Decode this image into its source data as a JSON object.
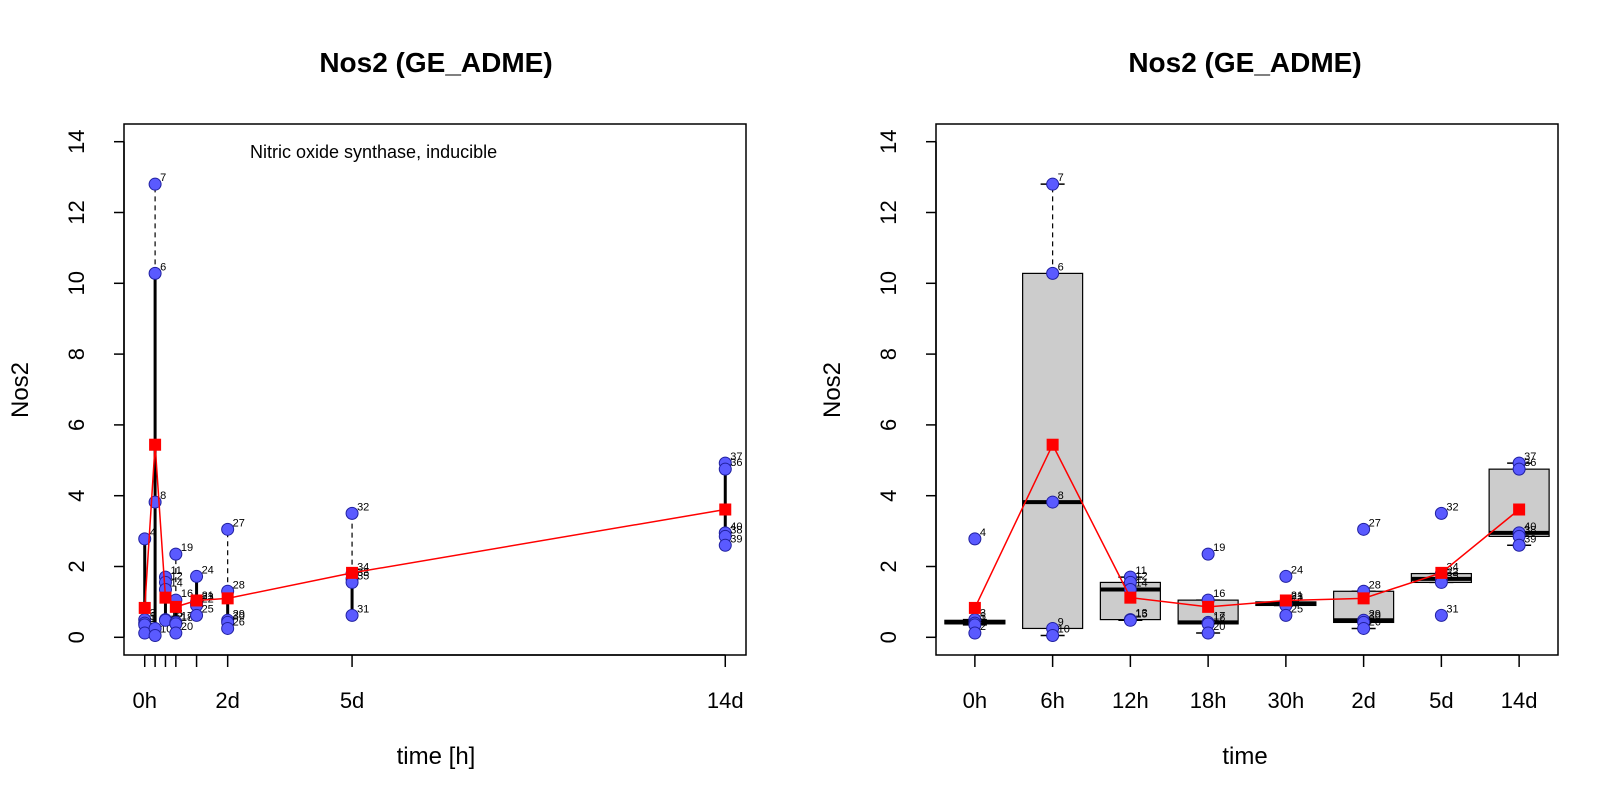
{
  "colors": {
    "point_fill": "#5a5aff",
    "point_stroke": "#2020a0",
    "mean_line": "#ff0000",
    "box_fill": "#cccccc",
    "axis": "#000000"
  },
  "chart_data": [
    {
      "type": "scatter",
      "title": "Nos2 (GE_ADME)",
      "annotation": "Nitric oxide synthase, inducible",
      "xlabel": "time [h]",
      "ylabel": "Nos2",
      "ylim": [
        -0.5,
        14.5
      ],
      "y_ticks": [
        0,
        2,
        4,
        6,
        8,
        10,
        12,
        14
      ],
      "xlim": [
        -12,
        348
      ],
      "x_ticks": [
        {
          "value": 0,
          "label": "0h"
        },
        {
          "value": 6,
          "label": ""
        },
        {
          "value": 12,
          "label": ""
        },
        {
          "value": 18,
          "label": ""
        },
        {
          "value": 30,
          "label": ""
        },
        {
          "value": 48,
          "label": "2d"
        },
        {
          "value": 120,
          "label": "5d"
        },
        {
          "value": 336,
          "label": "14d"
        }
      ],
      "points": [
        {
          "x": 0,
          "y": 2.78,
          "label": "4"
        },
        {
          "x": 0,
          "y": 0.5,
          "label": "3"
        },
        {
          "x": 0,
          "y": 0.4,
          "label": "5"
        },
        {
          "x": 0,
          "y": 0.35,
          "label": "1"
        },
        {
          "x": 0,
          "y": 0.12,
          "label": "2"
        },
        {
          "x": 6,
          "y": 12.8,
          "label": "7"
        },
        {
          "x": 6,
          "y": 10.28,
          "label": "6"
        },
        {
          "x": 6,
          "y": 3.82,
          "label": "8"
        },
        {
          "x": 6,
          "y": 0.25,
          "label": "9"
        },
        {
          "x": 6,
          "y": 0.05,
          "label": "10"
        },
        {
          "x": 12,
          "y": 1.7,
          "label": "11"
        },
        {
          "x": 12,
          "y": 1.55,
          "label": "12"
        },
        {
          "x": 12,
          "y": 1.35,
          "label": "14"
        },
        {
          "x": 12,
          "y": 0.5,
          "label": "13"
        },
        {
          "x": 12,
          "y": 0.48,
          "label": "15"
        },
        {
          "x": 18,
          "y": 2.35,
          "label": "19"
        },
        {
          "x": 18,
          "y": 1.05,
          "label": "16"
        },
        {
          "x": 18,
          "y": 0.42,
          "label": "17"
        },
        {
          "x": 18,
          "y": 0.38,
          "label": "18"
        },
        {
          "x": 18,
          "y": 0.12,
          "label": "20"
        },
        {
          "x": 30,
          "y": 1.72,
          "label": "24"
        },
        {
          "x": 30,
          "y": 1.0,
          "label": "21"
        },
        {
          "x": 30,
          "y": 0.95,
          "label": "23"
        },
        {
          "x": 30,
          "y": 0.9,
          "label": "22"
        },
        {
          "x": 30,
          "y": 0.62,
          "label": "25"
        },
        {
          "x": 48,
          "y": 3.05,
          "label": "27"
        },
        {
          "x": 48,
          "y": 1.3,
          "label": "28"
        },
        {
          "x": 48,
          "y": 0.48,
          "label": "29"
        },
        {
          "x": 48,
          "y": 0.42,
          "label": "30"
        },
        {
          "x": 48,
          "y": 0.25,
          "label": "26"
        },
        {
          "x": 120,
          "y": 3.5,
          "label": "32"
        },
        {
          "x": 120,
          "y": 1.8,
          "label": "34"
        },
        {
          "x": 120,
          "y": 1.65,
          "label": "33"
        },
        {
          "x": 120,
          "y": 1.55,
          "label": "35"
        },
        {
          "x": 120,
          "y": 0.62,
          "label": "31"
        },
        {
          "x": 336,
          "y": 4.92,
          "label": "37"
        },
        {
          "x": 336,
          "y": 4.75,
          "label": "36"
        },
        {
          "x": 336,
          "y": 2.95,
          "label": "40"
        },
        {
          "x": 336,
          "y": 2.85,
          "label": "38"
        },
        {
          "x": 336,
          "y": 2.6,
          "label": "39"
        }
      ],
      "ranges": [
        {
          "x": 0,
          "y_low": 0.12,
          "y_high": 2.78,
          "whisker_high": 2.78
        },
        {
          "x": 6,
          "y_low": 0.05,
          "y_high": 10.28,
          "whisker_high": 12.8
        },
        {
          "x": 12,
          "y_low": 0.48,
          "y_high": 1.7,
          "whisker_high": 1.7
        },
        {
          "x": 18,
          "y_low": 0.12,
          "y_high": 1.05,
          "whisker_high": 2.35
        },
        {
          "x": 30,
          "y_low": 0.62,
          "y_high": 1.72,
          "whisker_high": 1.72
        },
        {
          "x": 48,
          "y_low": 0.25,
          "y_high": 1.3,
          "whisker_high": 3.05
        },
        {
          "x": 120,
          "y_low": 0.62,
          "y_high": 1.8,
          "whisker_high": 3.5
        },
        {
          "x": 336,
          "y_low": 2.6,
          "y_high": 4.92,
          "whisker_high": 4.92
        }
      ],
      "mean_series": {
        "x": [
          0,
          6,
          12,
          18,
          30,
          48,
          120,
          336
        ],
        "y": [
          0.83,
          5.44,
          1.12,
          0.86,
          1.04,
          1.1,
          1.82,
          3.61
        ]
      }
    },
    {
      "type": "box",
      "title": "Nos2 (GE_ADME)",
      "xlabel": "time",
      "ylabel": "Nos2",
      "ylim": [
        -0.5,
        14.5
      ],
      "y_ticks": [
        0,
        2,
        4,
        6,
        8,
        10,
        12,
        14
      ],
      "categories": [
        "0h",
        "6h",
        "12h",
        "18h",
        "30h",
        "2d",
        "5d",
        "14d"
      ],
      "boxes": [
        {
          "q1": 0.38,
          "median": 0.42,
          "q3": 0.48,
          "whisker_low": 0.35,
          "whisker_high": 0.5
        },
        {
          "q1": 0.25,
          "median": 3.82,
          "q3": 10.28,
          "whisker_low": 0.05,
          "whisker_high": 12.8
        },
        {
          "q1": 0.5,
          "median": 1.35,
          "q3": 1.55,
          "whisker_low": 0.48,
          "whisker_high": 1.7
        },
        {
          "q1": 0.38,
          "median": 0.42,
          "q3": 1.05,
          "whisker_low": 0.12,
          "whisker_high": 1.05
        },
        {
          "q1": 0.9,
          "median": 0.95,
          "q3": 1.0,
          "whisker_low": 0.9,
          "whisker_high": 1.0
        },
        {
          "q1": 0.42,
          "median": 0.48,
          "q3": 1.3,
          "whisker_low": 0.25,
          "whisker_high": 1.3
        },
        {
          "q1": 1.55,
          "median": 1.65,
          "q3": 1.8,
          "whisker_low": 1.55,
          "whisker_high": 1.8
        },
        {
          "q1": 2.85,
          "median": 2.95,
          "q3": 4.75,
          "whisker_low": 2.6,
          "whisker_high": 4.92
        }
      ],
      "points": [
        {
          "cat": 0,
          "y": 2.78,
          "label": "4"
        },
        {
          "cat": 0,
          "y": 0.5,
          "label": "3"
        },
        {
          "cat": 0,
          "y": 0.4,
          "label": "5"
        },
        {
          "cat": 0,
          "y": 0.35,
          "label": "1"
        },
        {
          "cat": 0,
          "y": 0.12,
          "label": "2"
        },
        {
          "cat": 1,
          "y": 12.8,
          "label": "7"
        },
        {
          "cat": 1,
          "y": 10.28,
          "label": "6"
        },
        {
          "cat": 1,
          "y": 3.82,
          "label": "8"
        },
        {
          "cat": 1,
          "y": 0.25,
          "label": "9"
        },
        {
          "cat": 1,
          "y": 0.05,
          "label": "10"
        },
        {
          "cat": 2,
          "y": 1.7,
          "label": "11"
        },
        {
          "cat": 2,
          "y": 1.55,
          "label": "12"
        },
        {
          "cat": 2,
          "y": 1.35,
          "label": "14"
        },
        {
          "cat": 2,
          "y": 0.5,
          "label": "13"
        },
        {
          "cat": 2,
          "y": 0.48,
          "label": "15"
        },
        {
          "cat": 3,
          "y": 2.35,
          "label": "19"
        },
        {
          "cat": 3,
          "y": 1.05,
          "label": "16"
        },
        {
          "cat": 3,
          "y": 0.42,
          "label": "17"
        },
        {
          "cat": 3,
          "y": 0.38,
          "label": "18"
        },
        {
          "cat": 3,
          "y": 0.12,
          "label": "20"
        },
        {
          "cat": 4,
          "y": 1.72,
          "label": "24"
        },
        {
          "cat": 4,
          "y": 1.0,
          "label": "21"
        },
        {
          "cat": 4,
          "y": 0.95,
          "label": "23"
        },
        {
          "cat": 4,
          "y": 0.9,
          "label": "22"
        },
        {
          "cat": 4,
          "y": 0.62,
          "label": "25"
        },
        {
          "cat": 5,
          "y": 3.05,
          "label": "27"
        },
        {
          "cat": 5,
          "y": 1.3,
          "label": "28"
        },
        {
          "cat": 5,
          "y": 0.48,
          "label": "29"
        },
        {
          "cat": 5,
          "y": 0.42,
          "label": "30"
        },
        {
          "cat": 5,
          "y": 0.25,
          "label": "26"
        },
        {
          "cat": 6,
          "y": 3.5,
          "label": "32"
        },
        {
          "cat": 6,
          "y": 1.8,
          "label": "34"
        },
        {
          "cat": 6,
          "y": 1.65,
          "label": "33"
        },
        {
          "cat": 6,
          "y": 1.55,
          "label": "35"
        },
        {
          "cat": 6,
          "y": 0.62,
          "label": "31"
        },
        {
          "cat": 7,
          "y": 4.92,
          "label": "37"
        },
        {
          "cat": 7,
          "y": 4.75,
          "label": "36"
        },
        {
          "cat": 7,
          "y": 2.95,
          "label": "40"
        },
        {
          "cat": 7,
          "y": 2.85,
          "label": "38"
        },
        {
          "cat": 7,
          "y": 2.6,
          "label": "39"
        }
      ],
      "mean_series": {
        "y": [
          0.83,
          5.44,
          1.12,
          0.86,
          1.04,
          1.1,
          1.82,
          3.61
        ]
      }
    }
  ]
}
